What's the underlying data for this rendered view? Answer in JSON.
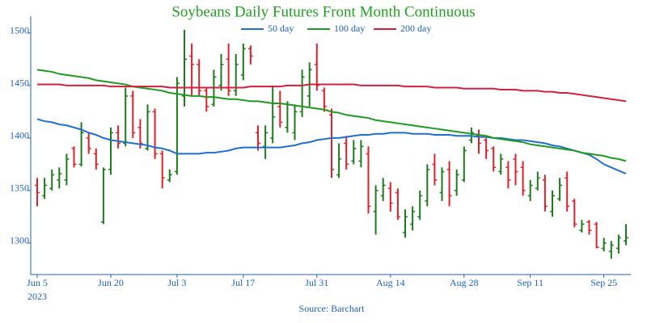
{
  "chart_data": {
    "type": "ohlc",
    "title": "Soybeans Daily Futures Front Month Continuous",
    "source": "Source: Barchart",
    "year_label": "2023",
    "categories": [
      "Jun 5",
      null,
      null,
      null,
      null,
      null,
      null,
      null,
      null,
      null,
      "Jun 20",
      null,
      null,
      null,
      null,
      null,
      null,
      null,
      null,
      "Jul 3",
      null,
      null,
      null,
      null,
      null,
      null,
      null,
      null,
      "Jul 17",
      null,
      null,
      null,
      null,
      null,
      null,
      null,
      null,
      null,
      "Jul 31",
      null,
      null,
      null,
      null,
      null,
      null,
      null,
      null,
      null,
      "Aug 14",
      null,
      null,
      null,
      null,
      null,
      null,
      null,
      null,
      null,
      "Aug 28",
      null,
      null,
      null,
      null,
      null,
      null,
      null,
      null,
      "Sep 11",
      null,
      null,
      null,
      null,
      null,
      null,
      null,
      null,
      null,
      "Sep 25",
      null,
      null,
      null
    ],
    "ohlc": {
      "up_color": "#1e7a1e",
      "down_color": "#e0202a",
      "open": [
        1355,
        1345,
        1352,
        1360,
        1360,
        1390,
        1375,
        1400,
        1385,
        1320,
        1370,
        1405,
        1395,
        1440,
        1410,
        1390,
        1425,
        1385,
        1360,
        1368,
        1440,
        1478,
        1470,
        1445,
        1432,
        1450,
        1475,
        1445,
        1460,
        1485,
        1405,
        1392,
        1400,
        1430,
        1410,
        1405,
        1425,
        1440,
        1470,
        1445,
        1422,
        1365,
        1395,
        1378,
        1378,
        1385,
        1330,
        1345,
        1352,
        1348,
        1310,
        1318,
        1325,
        1340,
        1375,
        1348,
        1370,
        1350,
        1360,
        1398,
        1402,
        1398,
        1390,
        1368,
        1372,
        1380,
        1372,
        1345,
        1352,
        1360,
        1330,
        1342,
        1362,
        1340,
        1312,
        1320,
        1318,
        1295,
        1292,
        1295,
        1302
      ],
      "high": [
        1362,
        1362,
        1370,
        1372,
        1385,
        1392,
        1415,
        1405,
        1390,
        1372,
        1410,
        1412,
        1448,
        1445,
        1418,
        1432,
        1428,
        1388,
        1370,
        1458,
        1503,
        1490,
        1475,
        1448,
        1465,
        1480,
        1490,
        1480,
        1490,
        1488,
        1412,
        1412,
        1450,
        1445,
        1435,
        1432,
        1465,
        1472,
        1490,
        1448,
        1428,
        1395,
        1402,
        1398,
        1398,
        1392,
        1355,
        1362,
        1358,
        1352,
        1332,
        1335,
        1350,
        1375,
        1385,
        1372,
        1378,
        1370,
        1392,
        1410,
        1408,
        1400,
        1392,
        1385,
        1378,
        1385,
        1378,
        1360,
        1368,
        1365,
        1350,
        1362,
        1368,
        1342,
        1322,
        1322,
        1320,
        1305,
        1302,
        1308,
        1318
      ],
      "low": [
        1335,
        1342,
        1350,
        1352,
        1355,
        1372,
        1373,
        1385,
        1370,
        1318,
        1365,
        1390,
        1392,
        1400,
        1390,
        1388,
        1380,
        1352,
        1358,
        1365,
        1430,
        1440,
        1440,
        1425,
        1430,
        1445,
        1440,
        1440,
        1455,
        1470,
        1388,
        1380,
        1395,
        1410,
        1405,
        1398,
        1420,
        1430,
        1445,
        1425,
        1362,
        1362,
        1370,
        1375,
        1372,
        1328,
        1308,
        1340,
        1330,
        1322,
        1305,
        1312,
        1322,
        1335,
        1355,
        1340,
        1335,
        1345,
        1358,
        1395,
        1385,
        1380,
        1368,
        1365,
        1352,
        1355,
        1345,
        1340,
        1350,
        1330,
        1325,
        1340,
        1330,
        1315,
        1310,
        1308,
        1295,
        1292,
        1285,
        1290,
        1298
      ],
      "close": [
        1348,
        1355,
        1365,
        1366,
        1380,
        1375,
        1405,
        1390,
        1375,
        1370,
        1405,
        1395,
        1440,
        1405,
        1395,
        1425,
        1385,
        1362,
        1365,
        1452,
        1475,
        1470,
        1445,
        1430,
        1458,
        1470,
        1445,
        1470,
        1485,
        1478,
        1395,
        1405,
        1420,
        1415,
        1432,
        1425,
        1458,
        1465,
        1450,
        1430,
        1370,
        1380,
        1375,
        1390,
        1392,
        1335,
        1350,
        1355,
        1338,
        1325,
        1325,
        1330,
        1345,
        1370,
        1360,
        1368,
        1345,
        1365,
        1388,
        1405,
        1395,
        1388,
        1372,
        1380,
        1360,
        1368,
        1350,
        1355,
        1362,
        1335,
        1345,
        1355,
        1335,
        1318,
        1318,
        1312,
        1296,
        1300,
        1298,
        1305,
        1305
      ]
    },
    "series": [
      {
        "name": "50 day",
        "color": "#1f6fd0",
        "values": [
          1418,
          1416,
          1415,
          1413,
          1412,
          1410,
          1408,
          1405,
          1403,
          1400,
          1398,
          1397,
          1396,
          1395,
          1394,
          1393,
          1391,
          1390,
          1388,
          1385,
          1385,
          1385,
          1385,
          1386,
          1386,
          1387,
          1388,
          1390,
          1391,
          1391,
          1391,
          1391,
          1391,
          1391,
          1392,
          1393,
          1395,
          1396,
          1398,
          1399,
          1400,
          1400,
          1401,
          1402,
          1403,
          1403,
          1404,
          1404,
          1405,
          1405,
          1405,
          1404,
          1404,
          1404,
          1403,
          1403,
          1403,
          1402,
          1402,
          1402,
          1401,
          1401,
          1400,
          1400,
          1399,
          1398,
          1398,
          1397,
          1396,
          1395,
          1393,
          1392,
          1390,
          1388,
          1386,
          1384,
          1380,
          1375,
          1372,
          1369,
          1366
        ]
      },
      {
        "name": "100 day",
        "color": "#1e9a1e",
        "values": [
          1465,
          1464,
          1463,
          1461,
          1460,
          1459,
          1458,
          1457,
          1455,
          1454,
          1453,
          1452,
          1451,
          1449,
          1448,
          1447,
          1446,
          1445,
          1443,
          1442,
          1441,
          1440,
          1440,
          1439,
          1439,
          1438,
          1437,
          1437,
          1436,
          1435,
          1435,
          1434,
          1433,
          1433,
          1432,
          1431,
          1430,
          1429,
          1428,
          1427,
          1425,
          1424,
          1422,
          1421,
          1420,
          1419,
          1417,
          1416,
          1415,
          1414,
          1413,
          1412,
          1411,
          1410,
          1409,
          1408,
          1407,
          1406,
          1405,
          1404,
          1403,
          1402,
          1400,
          1399,
          1398,
          1397,
          1396,
          1394,
          1393,
          1392,
          1391,
          1390,
          1389,
          1388,
          1386,
          1385,
          1384,
          1383,
          1381,
          1380,
          1378
        ]
      },
      {
        "name": "200 day",
        "color": "#d0203c",
        "values": [
          1451,
          1451,
          1451,
          1451,
          1450,
          1450,
          1450,
          1450,
          1450,
          1450,
          1449,
          1449,
          1449,
          1449,
          1449,
          1449,
          1449,
          1449,
          1448,
          1448,
          1448,
          1448,
          1448,
          1448,
          1448,
          1448,
          1448,
          1448,
          1448,
          1449,
          1449,
          1449,
          1449,
          1449,
          1450,
          1450,
          1450,
          1451,
          1451,
          1451,
          1451,
          1451,
          1451,
          1451,
          1450,
          1450,
          1450,
          1450,
          1450,
          1450,
          1449,
          1449,
          1449,
          1449,
          1448,
          1448,
          1448,
          1448,
          1447,
          1447,
          1447,
          1447,
          1447,
          1446,
          1446,
          1446,
          1445,
          1445,
          1445,
          1444,
          1444,
          1443,
          1443,
          1442,
          1441,
          1440,
          1439,
          1438,
          1437,
          1436,
          1435
        ]
      }
    ],
    "ylim": [
      1270,
      1516
    ],
    "yticks": [
      1300,
      1350,
      1400,
      1450,
      1500
    ],
    "legend": "top"
  }
}
